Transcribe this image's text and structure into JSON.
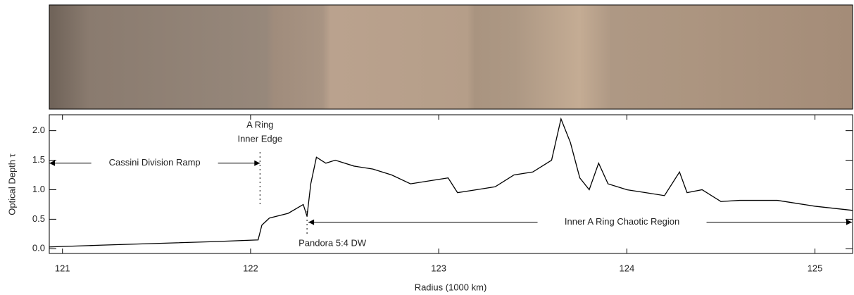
{
  "chart_data": {
    "type": "line",
    "xlabel": "Radius (1000 km)",
    "ylabel": "Optical Depth τ",
    "xlim": [
      120.93,
      125.2
    ],
    "ylim": [
      -0.08,
      2.27
    ],
    "xticks": [
      121,
      122,
      123,
      124,
      125
    ],
    "yticks": [
      {
        "value": 0,
        "label": "0.0"
      },
      0.5,
      {
        "value": 1,
        "label": "1.0"
      },
      1.5,
      {
        "value": 2,
        "label": "2.0"
      }
    ],
    "series": [
      {
        "color": "#000000",
        "x": [
          120.93,
          121.2,
          121.5,
          121.8,
          122.04,
          122.06,
          122.1,
          122.2,
          122.28,
          122.3,
          122.32,
          122.35,
          122.4,
          122.45,
          122.55,
          122.65,
          122.75,
          122.85,
          122.95,
          123.05,
          123.1,
          123.2,
          123.3,
          123.4,
          123.5,
          123.6,
          123.65,
          123.7,
          123.75,
          123.8,
          123.85,
          123.9,
          124.0,
          124.1,
          124.2,
          124.28,
          124.32,
          124.4,
          124.5,
          124.6,
          124.8,
          125.0,
          125.2
        ],
        "values": [
          0.03,
          0.06,
          0.09,
          0.12,
          0.15,
          0.4,
          0.52,
          0.6,
          0.75,
          0.55,
          1.1,
          1.55,
          1.45,
          1.5,
          1.4,
          1.35,
          1.25,
          1.1,
          1.15,
          1.2,
          0.95,
          1.0,
          1.05,
          1.25,
          1.3,
          1.5,
          2.2,
          1.8,
          1.2,
          1.0,
          1.45,
          1.1,
          1.0,
          0.95,
          0.9,
          1.3,
          0.95,
          1.0,
          0.8,
          0.82,
          0.82,
          0.72,
          0.65
        ]
      }
    ],
    "markers": [
      {
        "x": 122.05,
        "label": [
          "A Ring",
          "Inner Edge"
        ],
        "region": "Cassini Division Ramp"
      },
      {
        "x": 122.3,
        "label": [
          "Pandora 5:4 DW"
        ],
        "region": "Inner A Ring Chaotic Region"
      }
    ]
  }
}
